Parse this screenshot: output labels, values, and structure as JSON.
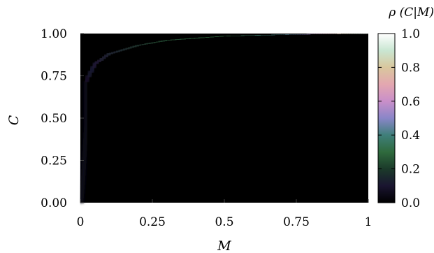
{
  "chart_data": {
    "type": "heatmap",
    "xlabel": "M",
    "ylabel": "C",
    "colorbar_label": "ρ (C|M)",
    "xlim": [
      0,
      1
    ],
    "ylim": [
      0,
      1
    ],
    "x_ticks": [
      "0",
      "0.25",
      "0.5",
      "0.75",
      "1"
    ],
    "y_ticks": [
      "0.00",
      "0.25",
      "0.50",
      "0.75",
      "1.00"
    ],
    "colorbar_ticks": [
      "0.0",
      "0.2",
      "0.4",
      "0.6",
      "0.8",
      "1.0"
    ],
    "colorbar_range": [
      0,
      1
    ],
    "colormap": "cubehelix",
    "background_color": "#000000",
    "ridge": {
      "description_points_M": [
        0.02,
        0.05,
        0.1,
        0.2,
        0.3,
        0.5,
        0.75,
        1.0
      ],
      "description_points_C": [
        0.72,
        0.82,
        0.88,
        0.93,
        0.96,
        0.985,
        0.995,
        1.0
      ],
      "peak_density": [
        0.08,
        0.1,
        0.13,
        0.18,
        0.22,
        0.3,
        0.45,
        0.98
      ]
    }
  }
}
